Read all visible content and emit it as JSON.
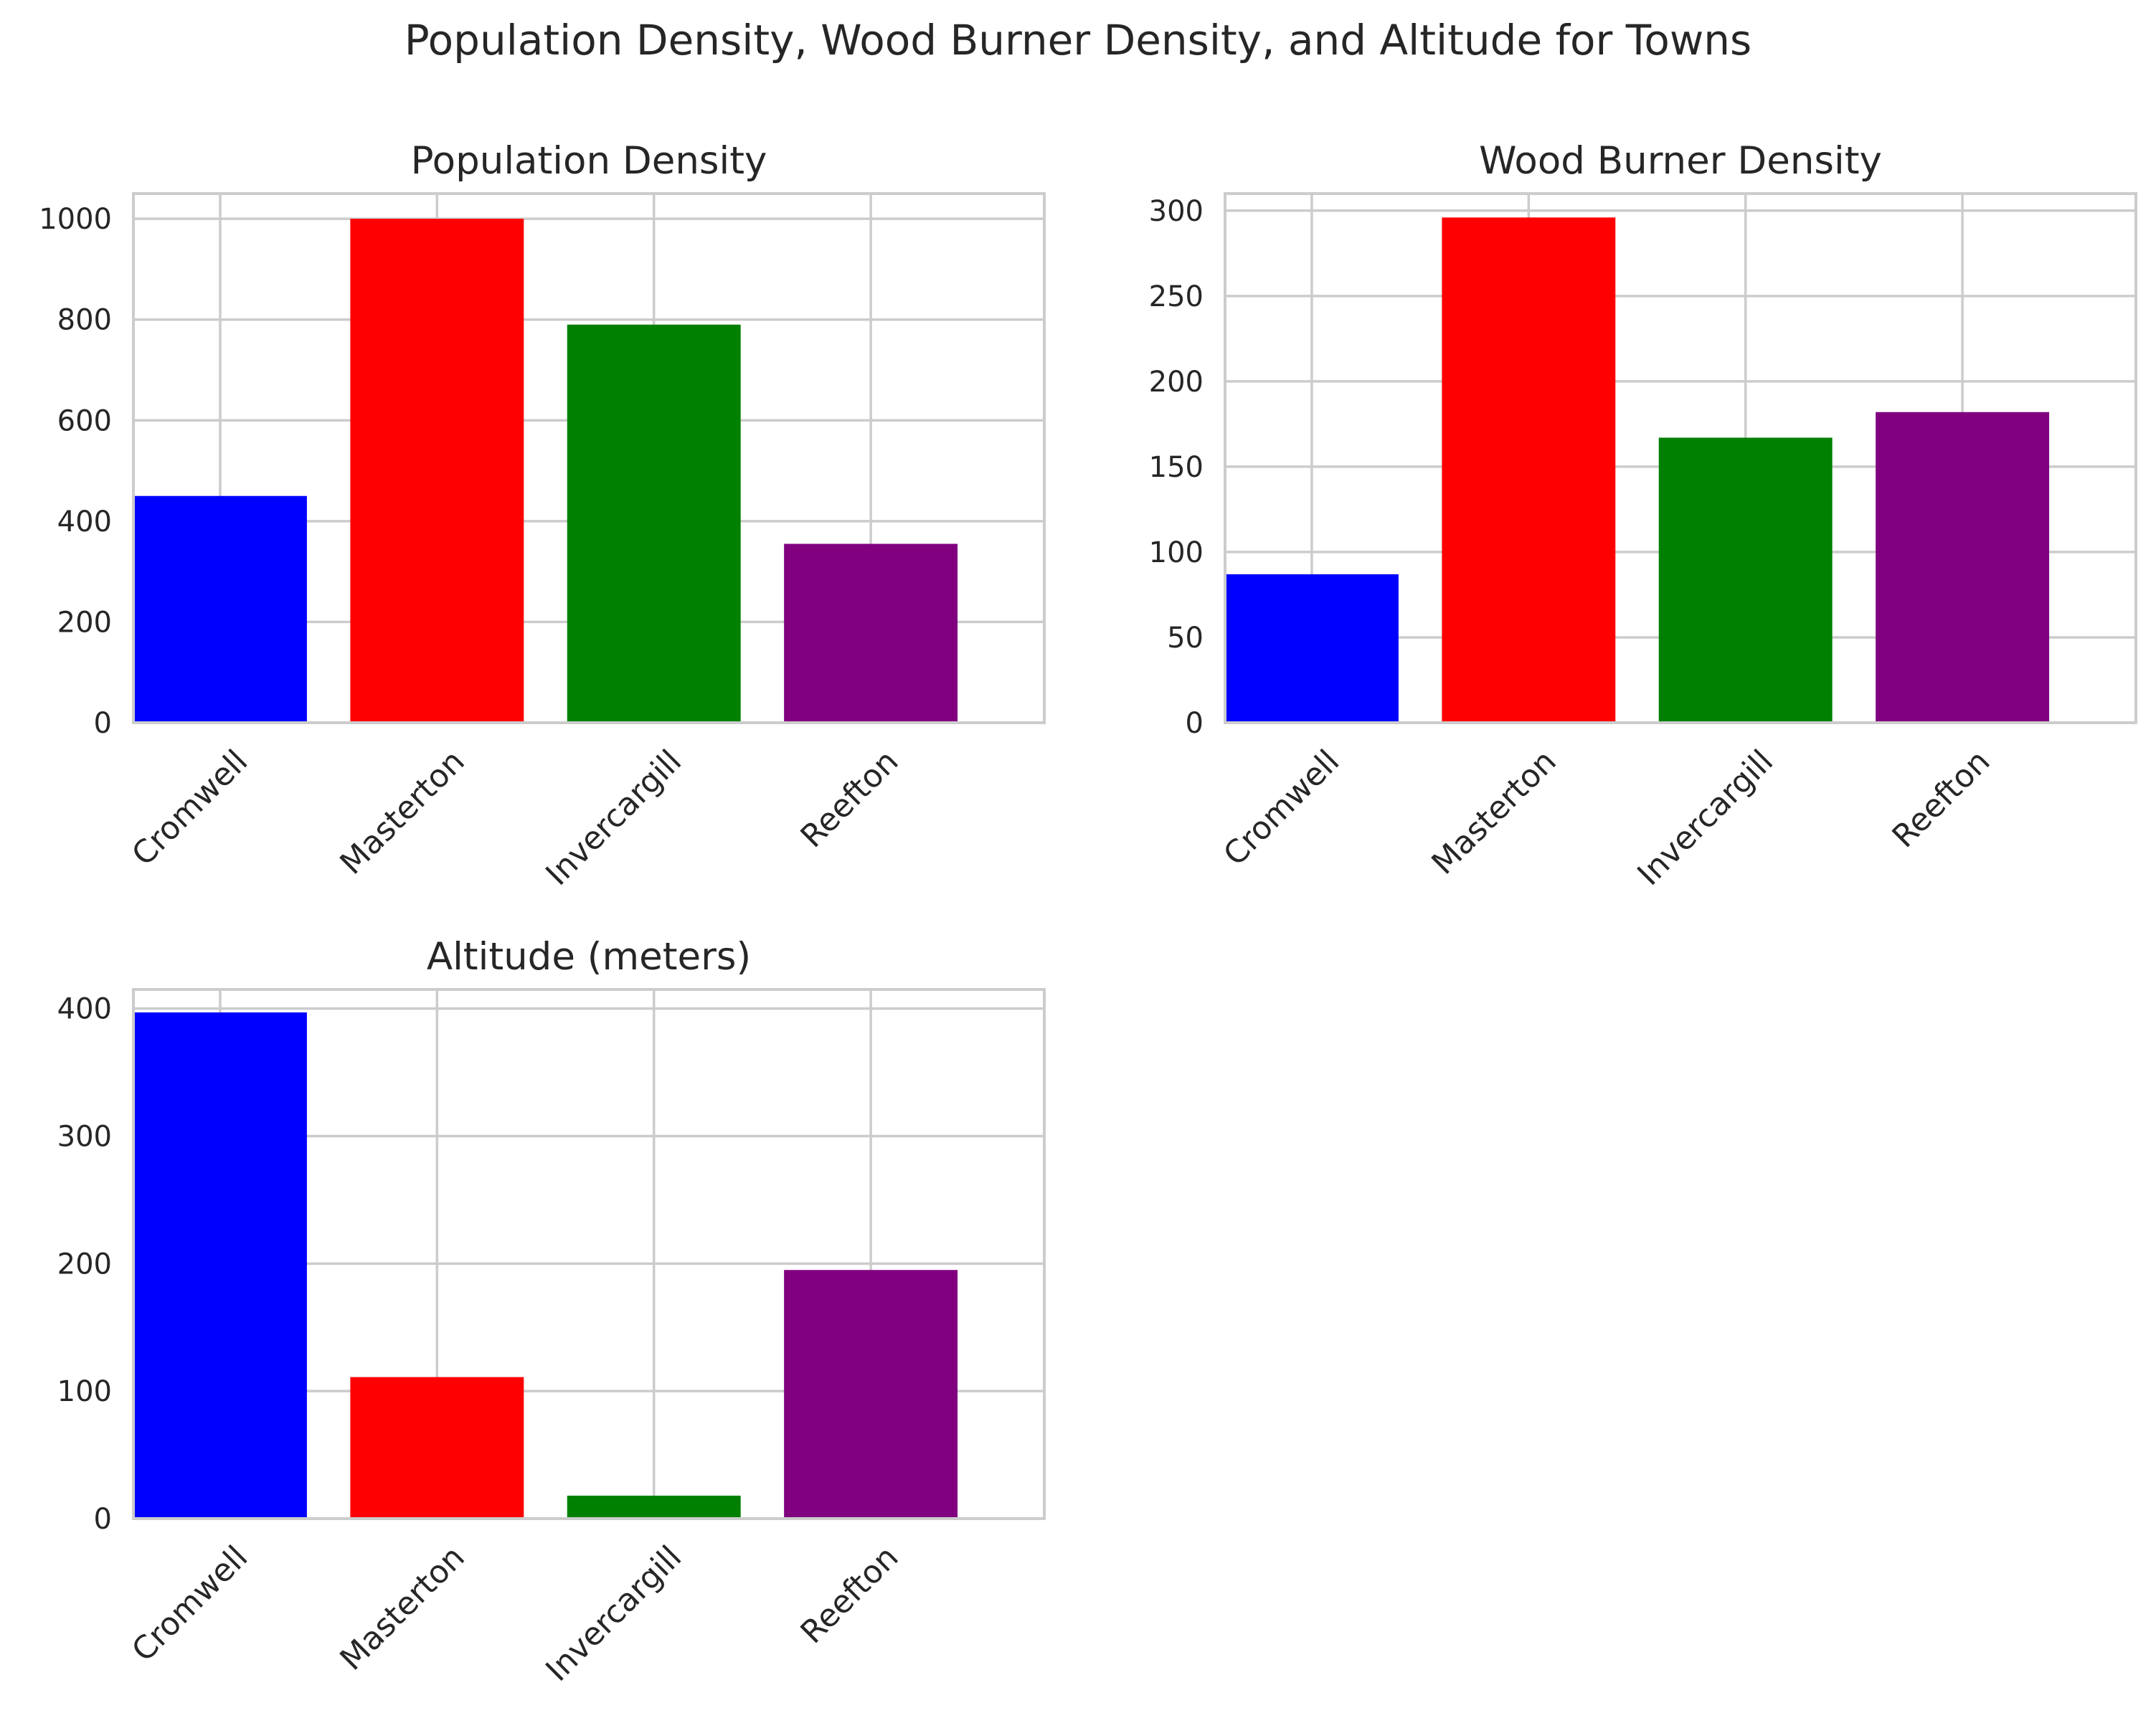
{
  "figure": {
    "title": "Population Density, Wood Burner Density, and Altitude for Towns"
  },
  "chart_data": [
    {
      "type": "bar",
      "title": "Population Density",
      "xlabel": "",
      "ylabel": "",
      "categories": [
        "Cromwell",
        "Masterton",
        "Invercargill",
        "Reefton"
      ],
      "values": [
        450,
        1000,
        790,
        355
      ],
      "colors": [
        "#0000ff",
        "#ff0000",
        "#008000",
        "#800080"
      ],
      "ylim": [
        0,
        1050
      ],
      "yticks": [
        0,
        200,
        400,
        600,
        800,
        1000
      ],
      "grid": true
    },
    {
      "type": "bar",
      "title": "Wood Burner Density",
      "xlabel": "",
      "ylabel": "",
      "categories": [
        "Cromwell",
        "Masterton",
        "Invercargill",
        "Reefton"
      ],
      "values": [
        87,
        296,
        167,
        182
      ],
      "colors": [
        "#0000ff",
        "#ff0000",
        "#008000",
        "#800080"
      ],
      "ylim": [
        0,
        310
      ],
      "yticks": [
        0,
        50,
        100,
        150,
        200,
        250,
        300
      ],
      "grid": true
    },
    {
      "type": "bar",
      "title": "Altitude (meters)",
      "xlabel": "",
      "ylabel": "",
      "categories": [
        "Cromwell",
        "Masterton",
        "Invercargill",
        "Reefton"
      ],
      "values": [
        397,
        111,
        18,
        195
      ],
      "colors": [
        "#0000ff",
        "#ff0000",
        "#008000",
        "#800080"
      ],
      "ylim": [
        0,
        415
      ],
      "yticks": [
        0,
        100,
        200,
        300,
        400
      ],
      "grid": true
    }
  ]
}
